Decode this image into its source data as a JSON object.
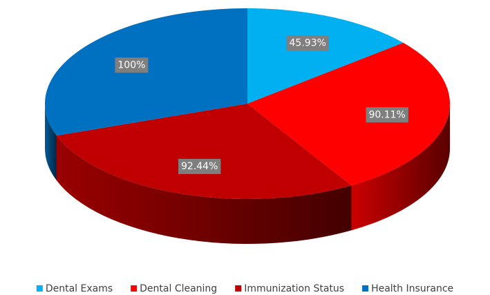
{
  "chart_data": {
    "type": "pie3d",
    "categories": [
      "Dental Exams",
      "Dental Cleaning",
      "Immunization Status",
      "Health Insurance"
    ],
    "values": [
      45.93,
      90.11,
      92.44,
      100
    ],
    "value_labels": [
      "45.93%",
      "90.11%",
      "92.44%",
      "100%"
    ],
    "colors": [
      "#00b0f0",
      "#ff0000",
      "#c00000",
      "#0070c0"
    ],
    "legend": "bottom"
  }
}
